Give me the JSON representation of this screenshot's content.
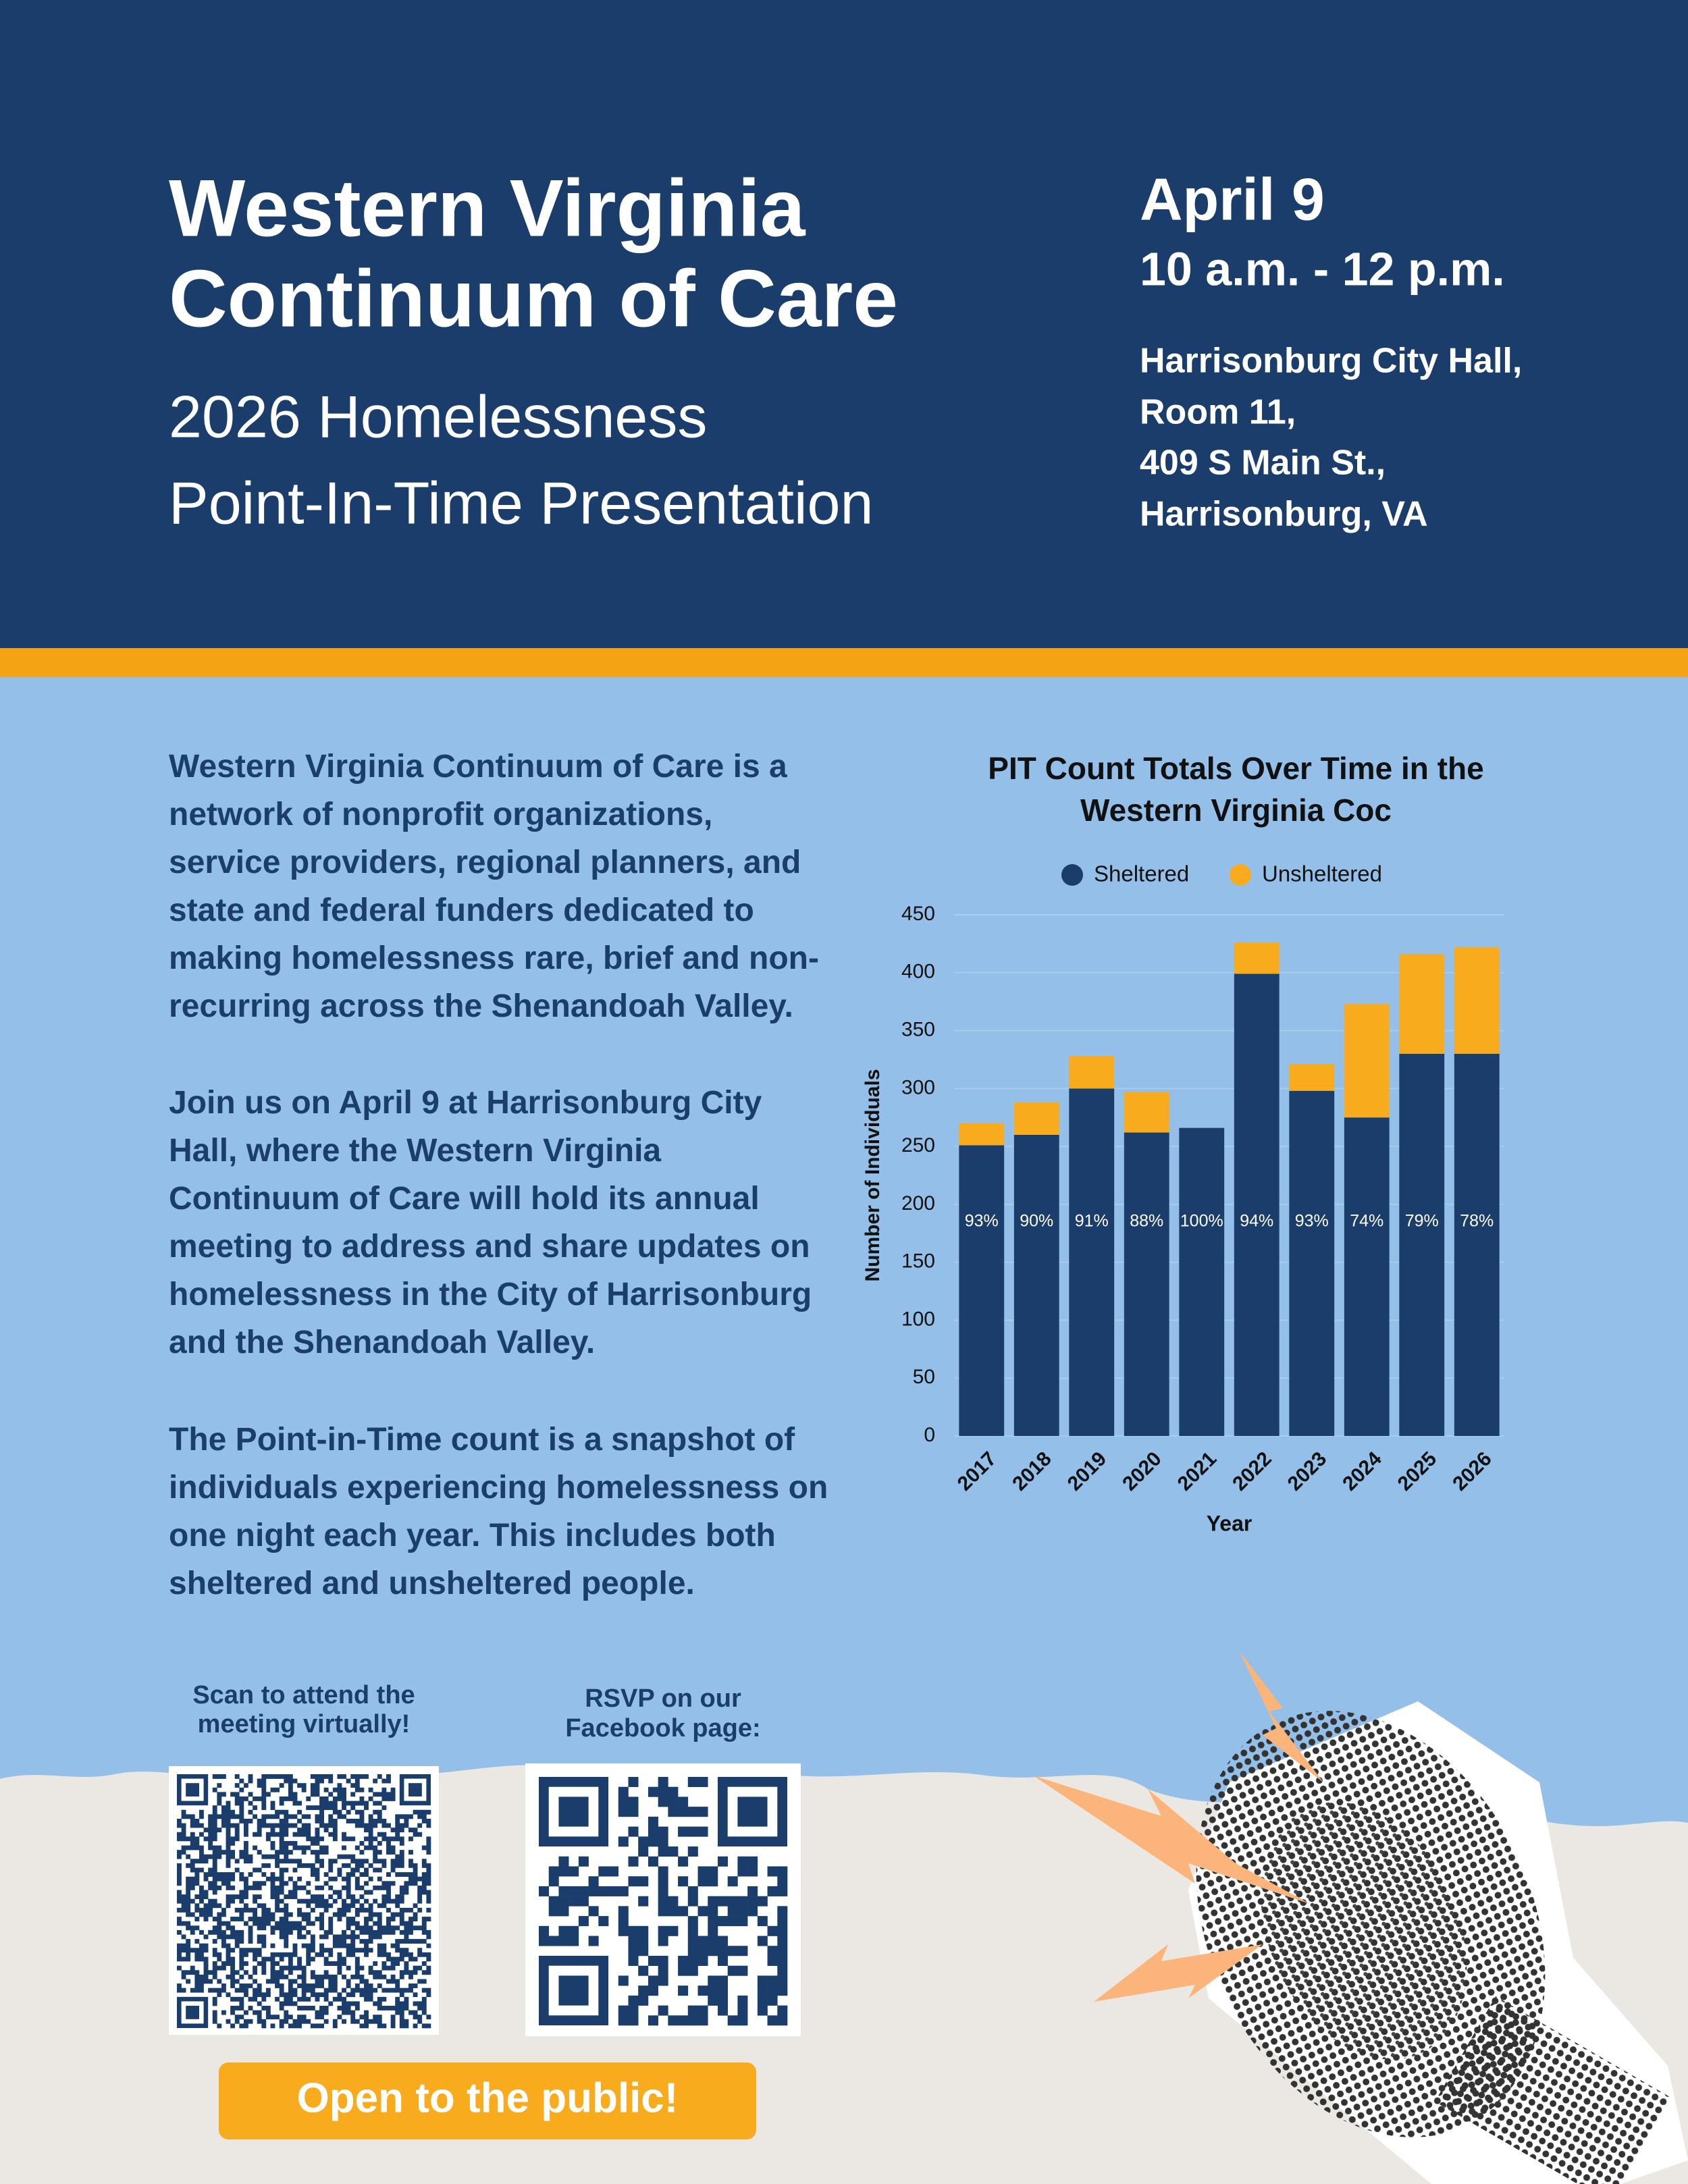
{
  "header": {
    "title_lines": [
      "Western Virginia",
      "Continuum of Care"
    ],
    "subtitle_lines": [
      "2026 Homelessness",
      "Point-In-Time Presentation"
    ],
    "date": "April 9",
    "time": "10 a.m. - 12 p.m.",
    "location_lines": [
      "Harrisonburg City Hall,",
      "Room 11,",
      "409 S Main St.,",
      "Harrisonburg, VA"
    ]
  },
  "body": {
    "paragraphs": [
      "Western Virginia Continuum of Care is a network of nonprofit organizations, service providers, regional planners, and state and federal funders dedicated to making homelessness rare, brief and non-recurring across the Shenandoah Valley.",
      "Join us on April 9 at Harrisonburg City Hall, where the Western Virginia Continuum of Care will hold its annual meeting to address and share updates on homelessness in the City of Harrisonburg and the Shenandoah Valley.",
      "The Point-in-Time count is a snapshot of individuals experiencing homelessness on one night each year. This includes both sheltered and unsheltered people."
    ]
  },
  "chart_data": {
    "type": "stacked_bar",
    "title_lines": [
      "PIT Count Totals Over Time in the",
      "Western Virginia Coc"
    ],
    "x_label": "Year",
    "y_label": "Number of Individuals",
    "categories": [
      "2017",
      "2018",
      "2019",
      "2020",
      "2021",
      "2022",
      "2023",
      "2024",
      "2025",
      "2026"
    ],
    "series": [
      {
        "name": "Sheltered",
        "color": "#1a3d6b",
        "values": [
          251,
          260,
          300,
          262,
          266,
          399,
          298,
          275,
          330,
          330
        ]
      },
      {
        "name": "Unsheltered",
        "color": "#f9ab1e",
        "values": [
          19,
          28,
          28,
          35,
          0,
          27,
          23,
          98,
          86,
          92
        ]
      }
    ],
    "share_labels": [
      "93%",
      "90%",
      "91%",
      "88%",
      "100%",
      "94%",
      "93%",
      "74%",
      "79%",
      "78%"
    ],
    "ylim": [
      0,
      450
    ],
    "yticks": [
      0,
      50,
      100,
      150,
      200,
      250,
      300,
      350,
      400,
      450
    ],
    "grid": true,
    "legend": "top"
  },
  "qr_captions": [
    [
      "Scan to attend the",
      "meeting virtually!"
    ],
    [
      "RSVP on our",
      "Facebook page:"
    ]
  ],
  "button": "Open to the public!"
}
